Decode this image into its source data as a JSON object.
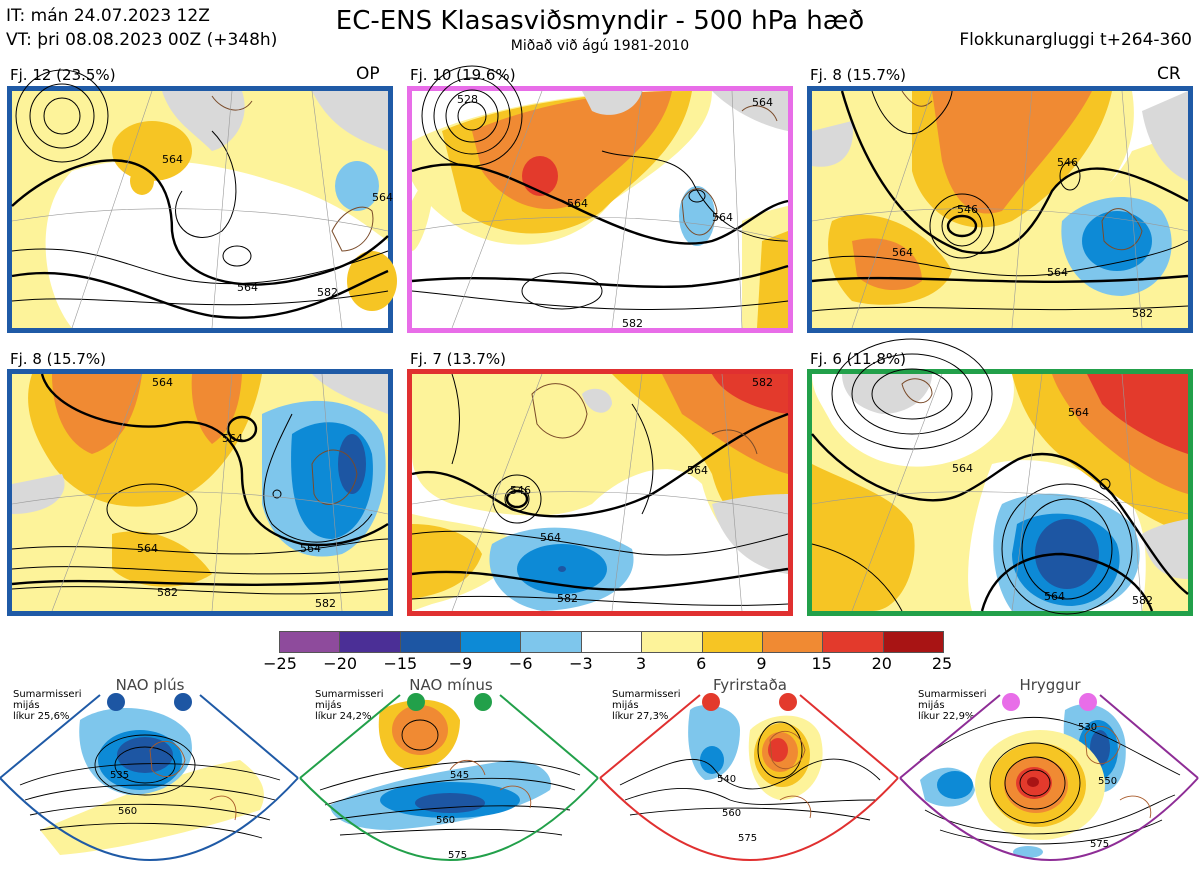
{
  "header": {
    "issue_time": "IT: mán 24.07.2023 12Z",
    "valid_time": "VT: þri 08.08.2023 00Z  (+348h)",
    "title": "EC-ENS Klasasviðsmyndir - 500 hPa hæð",
    "subtitle": "Miðað við ágú 1981-2010",
    "window": "Flokkunargluggi t+264-360"
  },
  "panels": [
    {
      "label": "Fj. 12 (23.5%)",
      "tag": "OP",
      "border": "#1f5aa6",
      "contours": [
        "564",
        "564",
        "564",
        "582"
      ]
    },
    {
      "label": "Fj. 10 (19.6%)",
      "tag": "",
      "border": "#e86de8",
      "contours": [
        "528",
        "564",
        "564",
        "564",
        "582"
      ]
    },
    {
      "label": "Fj. 8 (15.7%)",
      "tag": "CR",
      "border": "#1f5aa6",
      "contours": [
        "546",
        "546",
        "564",
        "564",
        "582"
      ]
    },
    {
      "label": "Fj. 8 (15.7%)",
      "tag": "",
      "border": "#1f5aa6",
      "contours": [
        "564",
        "564",
        "564",
        "564",
        "582",
        "582"
      ]
    },
    {
      "label": "Fj. 7 (13.7%)",
      "tag": "",
      "border": "#e03030",
      "contours": [
        "546",
        "564",
        "564",
        "582",
        "582"
      ]
    },
    {
      "label": "Fj. 6 (11.8%)",
      "tag": "",
      "border": "#22a04a",
      "contours": [
        "564",
        "564",
        "564",
        "582"
      ]
    }
  ],
  "colorbar": {
    "ticks": [
      "−25",
      "−20",
      "−15",
      "−9",
      "−6",
      "−3",
      "3",
      "6",
      "9",
      "15",
      "20",
      "25"
    ],
    "colors": [
      "#8e4b9c",
      "#4b2f96",
      "#1d56a3",
      "#0d8ad6",
      "#7ec6ec",
      "#ffffff",
      "#fdf39a",
      "#f6c524",
      "#f08a33",
      "#e33a2c",
      "#a81414"
    ]
  },
  "regimes": [
    {
      "name": "NAO plús",
      "season": "Sumarmisseri",
      "mean": "mijás",
      "likelihood": "líkur 25,6%",
      "frame": "#1f5aa6",
      "dot": "#1f5aa6",
      "contours": [
        "535",
        "560"
      ]
    },
    {
      "name": "NAO mínus",
      "season": "Sumarmisseri",
      "mean": "mijás",
      "likelihood": "líkur 24,2%",
      "frame": "#22a04a",
      "dot": "#22a04a",
      "contours": [
        "545",
        "560",
        "575"
      ]
    },
    {
      "name": "Fyrirstaða",
      "season": "Sumarmisseri",
      "mean": "mijás",
      "likelihood": "líkur 27,3%",
      "frame": "#e03030",
      "dot": "#e03030",
      "contours": [
        "540",
        "560",
        "575"
      ]
    },
    {
      "name": "Hryggur",
      "season": "Sumarmisseri",
      "mean": "mijás",
      "likelihood": "líkur 22,9%",
      "frame": "#8e2d96",
      "dot": "#e86de8",
      "contours": [
        "530",
        "550",
        "575"
      ]
    }
  ]
}
